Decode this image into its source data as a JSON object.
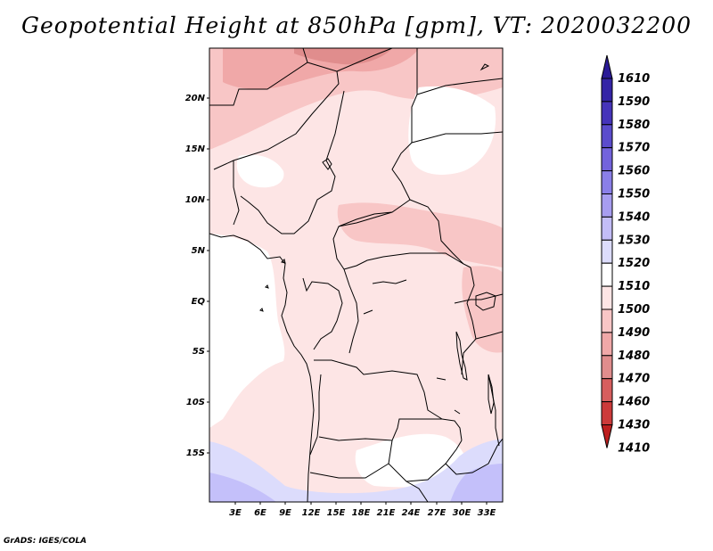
{
  "title": "Geopotential Height at 850hPa [gpm], VT: 2020032200",
  "credit": "GrADS: IGES/COLA",
  "map": {
    "lat_labels": [
      "20N",
      "15N",
      "10N",
      "5N",
      "EQ",
      "5S",
      "10S",
      "15S"
    ],
    "lon_labels": [
      "3E",
      "6E",
      "9E",
      "12E",
      "15E",
      "18E",
      "21E",
      "24E",
      "27E",
      "30E",
      "33E"
    ],
    "field_colors": {
      "background": "#fde5e5",
      "land_high": "#f8c6c6",
      "land_higher": "#f0a8a8",
      "peak": "#e08d8d",
      "ocean": "#ffffff",
      "south_low": "#dcdcfc",
      "south_lower": "#c4c0fa"
    }
  },
  "colorbar": {
    "labels": [
      "1610",
      "1590",
      "1580",
      "1570",
      "1560",
      "1550",
      "1540",
      "1530",
      "1520",
      "1510",
      "1500",
      "1490",
      "1480",
      "1470",
      "1460",
      "1430",
      "1410"
    ],
    "colors": [
      "#2a1a96",
      "#3424a6",
      "#4634ba",
      "#5b4ccc",
      "#7363dc",
      "#8a7fe8",
      "#a79df0",
      "#c3bdf7",
      "#dcdcfc",
      "#ffffff",
      "#fde5e5",
      "#f8c6c6",
      "#f0a8a8",
      "#e08d8d",
      "#d75e5e",
      "#cc3a3a",
      "#bd1f1f"
    ]
  }
}
